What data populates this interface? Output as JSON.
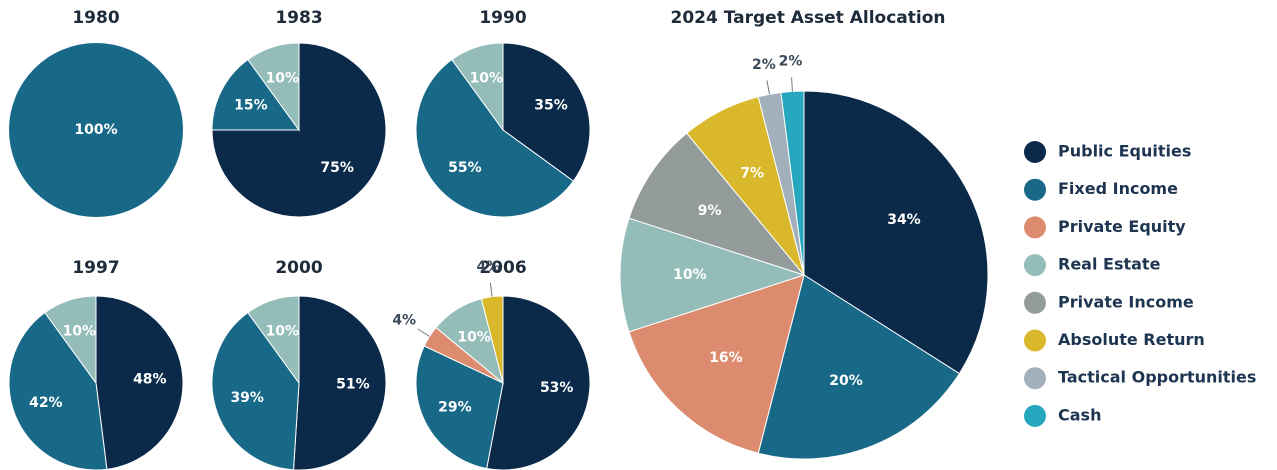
{
  "chart_data": [
    {
      "type": "pie",
      "title": "1980",
      "categories": [
        "Fixed Income"
      ],
      "values": [
        100
      ],
      "value_labels": [
        "100%"
      ],
      "colors": [
        "#186887"
      ]
    },
    {
      "type": "pie",
      "title": "1983",
      "categories": [
        "Public Equities",
        "Fixed Income",
        "Real Estate"
      ],
      "values": [
        75,
        15,
        10
      ],
      "value_labels": [
        "75%",
        "15%",
        "10%"
      ],
      "colors": [
        "#0b2a4a",
        "#186887",
        "#94bdb9"
      ]
    },
    {
      "type": "pie",
      "title": "1990",
      "categories": [
        "Public Equities",
        "Fixed Income",
        "Real Estate"
      ],
      "values": [
        35,
        55,
        10
      ],
      "value_labels": [
        "35%",
        "55%",
        "10%"
      ],
      "colors": [
        "#0b2a4a",
        "#186887",
        "#94bdb9"
      ]
    },
    {
      "type": "pie",
      "title": "2024 Target Asset Allocation",
      "categories": [
        "Public Equities",
        "Fixed Income",
        "Private Equity",
        "Real Estate",
        "Private Income",
        "Absolute Return",
        "Tactical Opportunities",
        "Cash"
      ],
      "values": [
        34,
        20,
        16,
        10,
        9,
        7,
        2,
        2
      ],
      "value_labels": [
        "34%",
        "20%",
        "16%",
        "10%",
        "9%",
        "7%",
        "2%",
        "2%"
      ],
      "colors": [
        "#0b2a4a",
        "#186887",
        "#dd8b6e",
        "#94bdb9",
        "#939c9b",
        "#d9b92b",
        "#a2b0bc",
        "#27a7be"
      ],
      "legend": "right"
    },
    {
      "type": "pie",
      "title": "1997",
      "categories": [
        "Public Equities",
        "Fixed Income",
        "Real Estate"
      ],
      "values": [
        48,
        42,
        10
      ],
      "value_labels": [
        "48%",
        "42%",
        "10%"
      ],
      "colors": [
        "#0b2a4a",
        "#186887",
        "#94bdb9"
      ]
    },
    {
      "type": "pie",
      "title": "2000",
      "categories": [
        "Public Equities",
        "Fixed Income",
        "Real Estate"
      ],
      "values": [
        51,
        39,
        10
      ],
      "value_labels": [
        "51%",
        "39%",
        "10%"
      ],
      "colors": [
        "#0b2a4a",
        "#186887",
        "#94bdb9"
      ]
    },
    {
      "type": "pie",
      "title": "2006",
      "categories": [
        "Public Equities",
        "Fixed Income",
        "Private Equity",
        "Real Estate",
        "Absolute Return"
      ],
      "values": [
        53,
        29,
        4,
        10,
        4
      ],
      "value_labels": [
        "53%",
        "29%",
        "4%",
        "10%",
        "4%"
      ],
      "colors": [
        "#0b2a4a",
        "#186887",
        "#dd8b6e",
        "#94bdb9",
        "#d9b92b"
      ]
    }
  ]
}
